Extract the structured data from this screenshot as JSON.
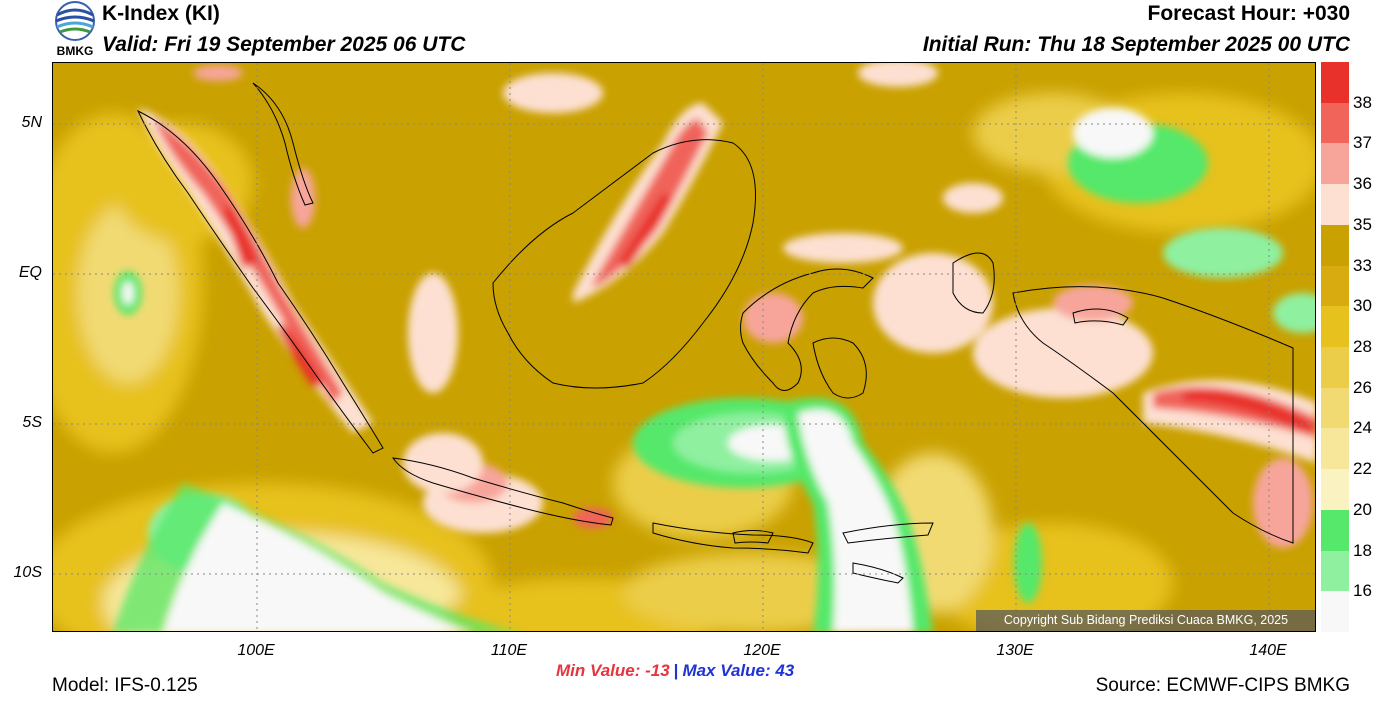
{
  "logo": {
    "text": "BMKG",
    "icon": "bmkg-logo-icon"
  },
  "header": {
    "title": "K-Index (KI)",
    "valid": "Valid: Fri 19 September 2025 06 UTC",
    "forecast_hour": "Forecast Hour: +030",
    "initial_run": "Initial Run: Thu 18 September 2025 00 UTC"
  },
  "axes": {
    "y_ticks": [
      "5N",
      "EQ",
      "5S",
      "10S"
    ],
    "x_ticks": [
      "100E",
      "110E",
      "120E",
      "130E",
      "140E"
    ]
  },
  "colorbar": {
    "labels": [
      "38",
      "37",
      "36",
      "35",
      "33",
      "30",
      "28",
      "26",
      "24",
      "22",
      "20",
      "18",
      "16"
    ],
    "colors": [
      "#e8312a",
      "#f0645a",
      "#f7a59b",
      "#fde0d2",
      "#c9a100",
      "#d8ab10",
      "#e7c11e",
      "#eccd4a",
      "#f2da73",
      "#f7e79a",
      "#fbf2c1",
      "#55e86a",
      "#8ff0a0",
      "#f8f8f8"
    ]
  },
  "copyright": "Copyright Sub Bidang Prediksi Cuaca BMKG, 2025",
  "stats": {
    "min": "Min Value: -13",
    "separator": "|",
    "max": "Max Value:  43"
  },
  "footer": {
    "model": "Model: IFS-0.125",
    "source": "Source: ECMWF-CIPS BMKG"
  }
}
